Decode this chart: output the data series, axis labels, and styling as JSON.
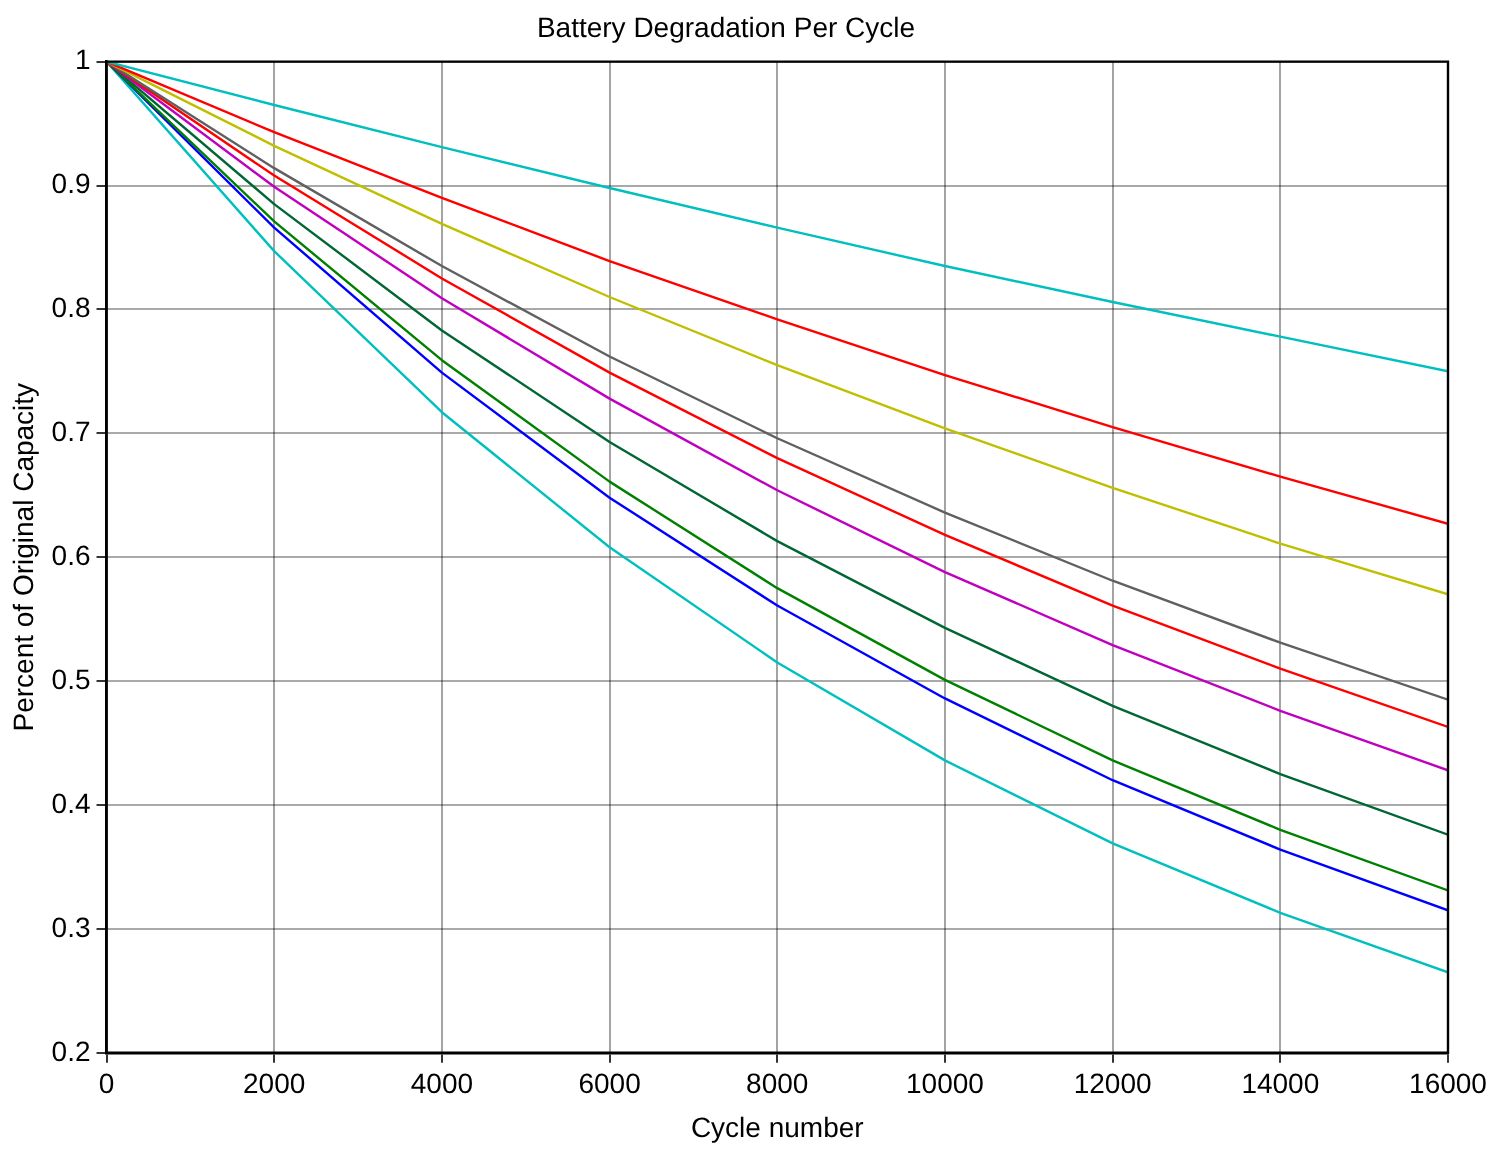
{
  "chart_data": {
    "type": "line",
    "title": "Battery Degradation Per Cycle",
    "xlabel": "Cycle number",
    "ylabel": "Percent of Original Capacity",
    "x": [
      0,
      2000,
      4000,
      6000,
      8000,
      10000,
      12000,
      14000,
      16000
    ],
    "series": [
      {
        "color": "#00bfbf",
        "values": [
          1,
          0.965,
          0.931,
          0.898,
          0.866,
          0.835,
          0.806,
          0.778,
          0.75
        ]
      },
      {
        "color": "#ff0000",
        "values": [
          1,
          0.943,
          0.89,
          0.839,
          0.792,
          0.747,
          0.705,
          0.665,
          0.627
        ]
      },
      {
        "color": "#bfbf00",
        "values": [
          1,
          0.932,
          0.869,
          0.81,
          0.755,
          0.704,
          0.656,
          0.611,
          0.57
        ]
      },
      {
        "color": "#606060",
        "values": [
          1,
          0.914,
          0.835,
          0.762,
          0.696,
          0.636,
          0.581,
          0.531,
          0.485
        ]
      },
      {
        "color": "#ff0000",
        "values": [
          1,
          0.908,
          0.825,
          0.749,
          0.68,
          0.618,
          0.561,
          0.51,
          0.463
        ]
      },
      {
        "color": "#bf00bf",
        "values": [
          1,
          0.899,
          0.809,
          0.728,
          0.654,
          0.588,
          0.529,
          0.476,
          0.428
        ]
      },
      {
        "color": "#006633",
        "values": [
          1,
          0.885,
          0.783,
          0.693,
          0.613,
          0.543,
          0.48,
          0.425,
          0.376
        ]
      },
      {
        "color": "#008000",
        "values": [
          1,
          0.871,
          0.759,
          0.661,
          0.575,
          0.501,
          0.436,
          0.38,
          0.331
        ]
      },
      {
        "color": "#0000ff",
        "values": [
          1,
          0.866,
          0.749,
          0.648,
          0.561,
          0.486,
          0.42,
          0.364,
          0.315
        ]
      },
      {
        "color": "#00bfbf",
        "values": [
          1,
          0.847,
          0.717,
          0.608,
          0.515,
          0.436,
          0.369,
          0.313,
          0.265
        ]
      }
    ],
    "xlim": [
      0,
      16000
    ],
    "xticks": [
      0,
      2000,
      4000,
      6000,
      8000,
      10000,
      12000,
      14000,
      16000
    ],
    "ylim": [
      0.2,
      1
    ],
    "yticks": [
      0.2,
      0.3,
      0.4,
      0.5,
      0.6,
      0.7,
      0.8,
      0.9,
      1
    ],
    "grid": true,
    "legend": false,
    "marker": "none",
    "line_style": "solid"
  }
}
